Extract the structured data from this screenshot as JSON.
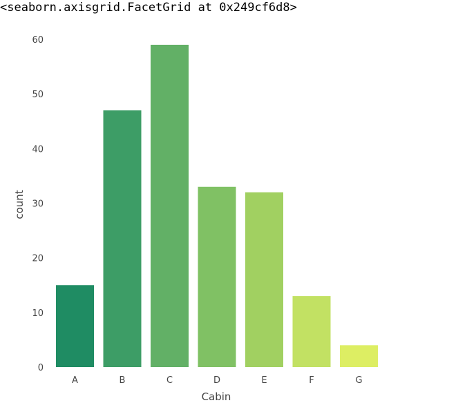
{
  "output_repr": "<seaborn.axisgrid.FacetGrid at 0x249cf6d8>",
  "chart_data": {
    "type": "bar",
    "categories": [
      "A",
      "B",
      "C",
      "D",
      "E",
      "F",
      "G"
    ],
    "values": [
      15,
      47,
      59,
      33,
      32,
      13,
      4
    ],
    "title": "",
    "xlabel": "Cabin",
    "ylabel": "count",
    "ylim": [
      0,
      60
    ],
    "yticks": [
      0,
      10,
      20,
      30,
      40,
      50,
      60
    ],
    "grid": false,
    "colors": [
      "#1f8c63",
      "#3d9d66",
      "#62b066",
      "#80c164",
      "#a1d061",
      "#c2e163",
      "#ddee63"
    ],
    "edge_colors": [
      "#16724f",
      "#32825a",
      "#529657",
      "#6ea455",
      "#8ab354",
      "#a6c257",
      "#bdce5a"
    ]
  }
}
